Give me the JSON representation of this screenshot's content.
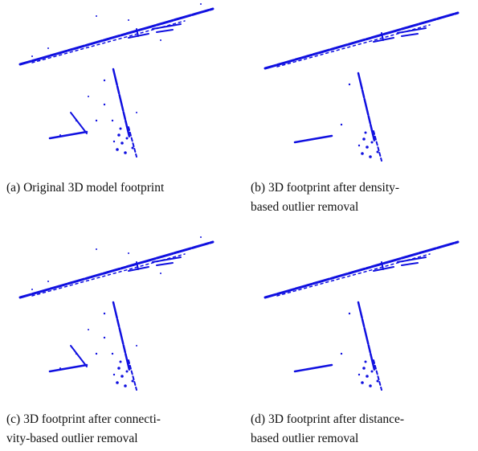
{
  "captions": [
    {
      "lines": [
        "(a)  Original 3D model footprint"
      ]
    },
    {
      "lines": [
        "(b)  3D footprint after density-",
        "based outlier removal"
      ]
    },
    {
      "lines": [
        "(c)  3D footprint after connecti-",
        "vity-based outlier removal"
      ]
    },
    {
      "lines": [
        "(d)  3D footprint after distance-",
        "based outlier removal"
      ]
    }
  ]
}
